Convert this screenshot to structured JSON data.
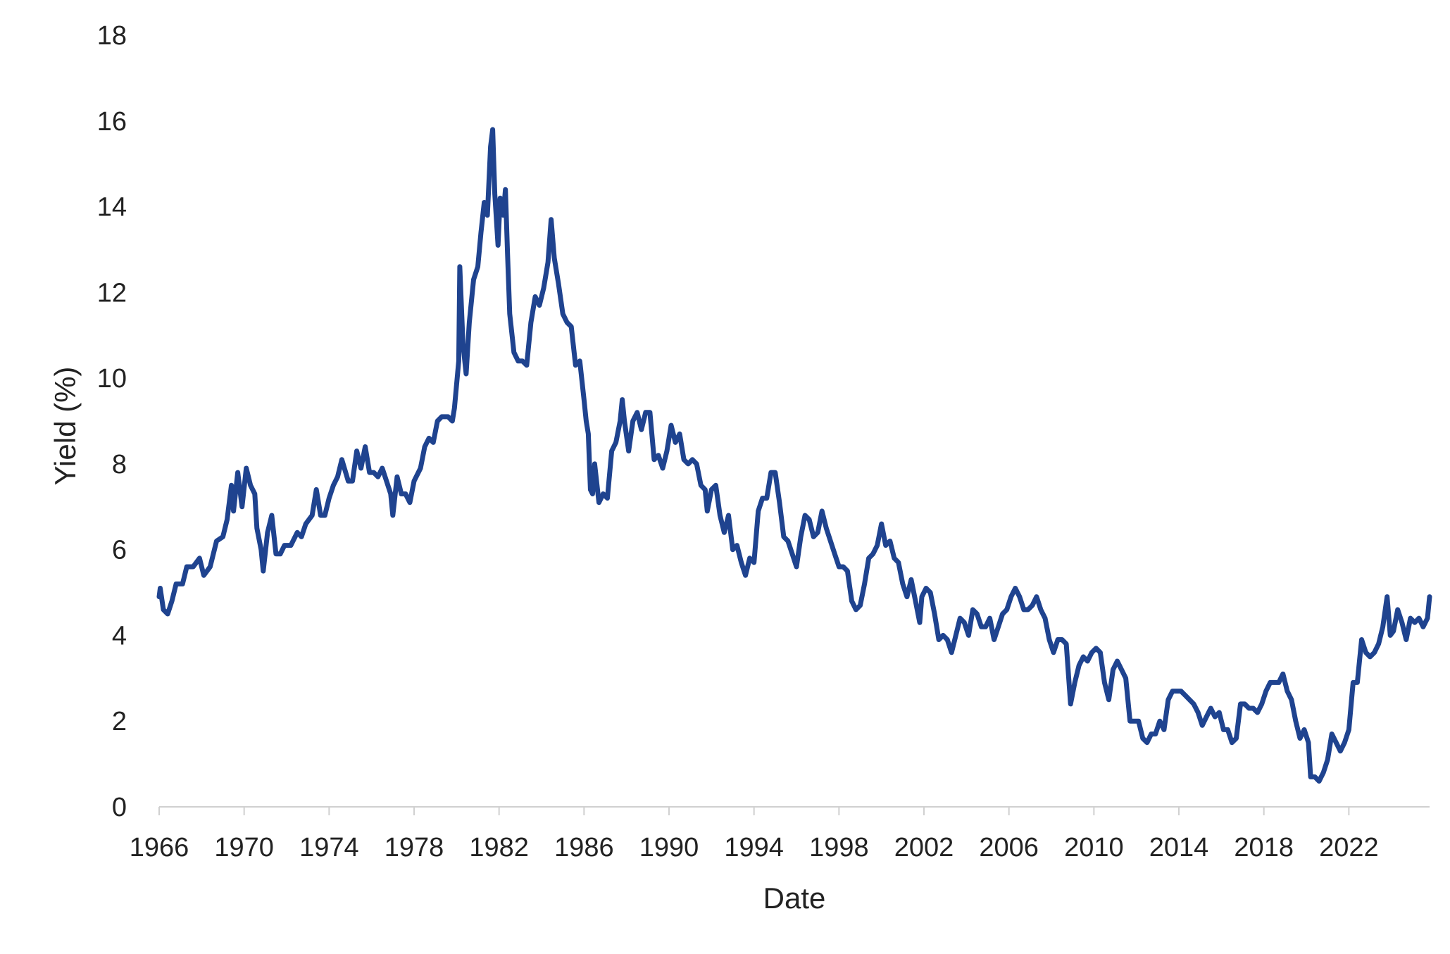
{
  "chart_data": {
    "type": "line",
    "title": "",
    "xlabel": "Date",
    "ylabel": "Yield (%)",
    "xlim": [
      1966,
      2025.8
    ],
    "ylim": [
      0,
      18
    ],
    "grid": false,
    "legend": "none",
    "x_ticks": [
      1966,
      1970,
      1974,
      1978,
      1982,
      1986,
      1990,
      1994,
      1998,
      2002,
      2006,
      2010,
      2014,
      2018,
      2022
    ],
    "y_ticks": [
      0,
      2,
      4,
      6,
      8,
      10,
      12,
      14,
      16,
      18
    ],
    "series": [
      {
        "color": "#1f438f",
        "points": [
          [
            1966.0,
            4.9
          ],
          [
            1966.05,
            5.1
          ],
          [
            1966.2,
            4.6
          ],
          [
            1966.4,
            4.5
          ],
          [
            1966.6,
            4.8
          ],
          [
            1966.8,
            5.2
          ],
          [
            1967.1,
            5.2
          ],
          [
            1967.3,
            5.6
          ],
          [
            1967.6,
            5.6
          ],
          [
            1967.9,
            5.8
          ],
          [
            1968.1,
            5.4
          ],
          [
            1968.4,
            5.6
          ],
          [
            1968.7,
            6.2
          ],
          [
            1969.0,
            6.3
          ],
          [
            1969.2,
            6.7
          ],
          [
            1969.4,
            7.5
          ],
          [
            1969.5,
            6.9
          ],
          [
            1969.7,
            7.8
          ],
          [
            1969.9,
            7.0
          ],
          [
            1970.1,
            7.9
          ],
          [
            1970.3,
            7.5
          ],
          [
            1970.5,
            7.3
          ],
          [
            1970.6,
            6.5
          ],
          [
            1970.8,
            6.0
          ],
          [
            1970.9,
            5.5
          ],
          [
            1971.1,
            6.4
          ],
          [
            1971.3,
            6.8
          ],
          [
            1971.5,
            5.9
          ],
          [
            1971.7,
            5.9
          ],
          [
            1971.9,
            6.1
          ],
          [
            1972.2,
            6.1
          ],
          [
            1972.5,
            6.4
          ],
          [
            1972.7,
            6.3
          ],
          [
            1972.9,
            6.6
          ],
          [
            1973.2,
            6.8
          ],
          [
            1973.4,
            7.4
          ],
          [
            1973.6,
            6.8
          ],
          [
            1973.8,
            6.8
          ],
          [
            1974.0,
            7.2
          ],
          [
            1974.2,
            7.5
          ],
          [
            1974.4,
            7.7
          ],
          [
            1974.6,
            8.1
          ],
          [
            1974.9,
            7.6
          ],
          [
            1975.1,
            7.6
          ],
          [
            1975.3,
            8.3
          ],
          [
            1975.5,
            7.9
          ],
          [
            1975.7,
            8.4
          ],
          [
            1975.9,
            7.8
          ],
          [
            1976.1,
            7.8
          ],
          [
            1976.3,
            7.7
          ],
          [
            1976.5,
            7.9
          ],
          [
            1976.7,
            7.6
          ],
          [
            1976.9,
            7.3
          ],
          [
            1977.0,
            6.8
          ],
          [
            1977.2,
            7.7
          ],
          [
            1977.4,
            7.3
          ],
          [
            1977.6,
            7.3
          ],
          [
            1977.8,
            7.1
          ],
          [
            1978.0,
            7.6
          ],
          [
            1978.3,
            7.9
          ],
          [
            1978.5,
            8.4
          ],
          [
            1978.7,
            8.6
          ],
          [
            1978.9,
            8.5
          ],
          [
            1979.1,
            9.0
          ],
          [
            1979.3,
            9.1
          ],
          [
            1979.6,
            9.1
          ],
          [
            1979.8,
            9.0
          ],
          [
            1979.9,
            9.3
          ],
          [
            1980.1,
            10.4
          ],
          [
            1980.15,
            12.6
          ],
          [
            1980.3,
            10.8
          ],
          [
            1980.45,
            10.1
          ],
          [
            1980.6,
            11.3
          ],
          [
            1980.8,
            12.3
          ],
          [
            1981.0,
            12.6
          ],
          [
            1981.15,
            13.4
          ],
          [
            1981.3,
            14.1
          ],
          [
            1981.45,
            13.8
          ],
          [
            1981.6,
            15.4
          ],
          [
            1981.7,
            15.8
          ],
          [
            1981.8,
            14.3
          ],
          [
            1981.95,
            13.1
          ],
          [
            1982.05,
            14.2
          ],
          [
            1982.2,
            13.8
          ],
          [
            1982.3,
            14.4
          ],
          [
            1982.4,
            12.9
          ],
          [
            1982.5,
            11.5
          ],
          [
            1982.7,
            10.6
          ],
          [
            1982.9,
            10.4
          ],
          [
            1983.1,
            10.4
          ],
          [
            1983.3,
            10.3
          ],
          [
            1983.5,
            11.3
          ],
          [
            1983.7,
            11.9
          ],
          [
            1983.9,
            11.7
          ],
          [
            1984.1,
            12.1
          ],
          [
            1984.3,
            12.7
          ],
          [
            1984.45,
            13.7
          ],
          [
            1984.6,
            12.8
          ],
          [
            1984.8,
            12.2
          ],
          [
            1985.0,
            11.5
          ],
          [
            1985.2,
            11.3
          ],
          [
            1985.4,
            11.2
          ],
          [
            1985.6,
            10.3
          ],
          [
            1985.8,
            10.4
          ],
          [
            1986.0,
            9.5
          ],
          [
            1986.1,
            9.0
          ],
          [
            1986.2,
            8.7
          ],
          [
            1986.3,
            7.4
          ],
          [
            1986.4,
            7.3
          ],
          [
            1986.5,
            8.0
          ],
          [
            1986.7,
            7.1
          ],
          [
            1986.9,
            7.3
          ],
          [
            1987.1,
            7.2
          ],
          [
            1987.3,
            8.3
          ],
          [
            1987.5,
            8.5
          ],
          [
            1987.7,
            9.0
          ],
          [
            1987.8,
            9.5
          ],
          [
            1987.9,
            9.0
          ],
          [
            1988.1,
            8.3
          ],
          [
            1988.3,
            9.0
          ],
          [
            1988.5,
            9.2
          ],
          [
            1988.7,
            8.8
          ],
          [
            1988.9,
            9.2
          ],
          [
            1989.1,
            9.2
          ],
          [
            1989.3,
            8.1
          ],
          [
            1989.5,
            8.2
          ],
          [
            1989.7,
            7.9
          ],
          [
            1989.9,
            8.3
          ],
          [
            1990.1,
            8.9
          ],
          [
            1990.3,
            8.5
          ],
          [
            1990.5,
            8.7
          ],
          [
            1990.7,
            8.1
          ],
          [
            1990.9,
            8.0
          ],
          [
            1991.1,
            8.1
          ],
          [
            1991.3,
            8.0
          ],
          [
            1991.5,
            7.5
          ],
          [
            1991.7,
            7.4
          ],
          [
            1991.8,
            6.9
          ],
          [
            1992.0,
            7.4
          ],
          [
            1992.2,
            7.5
          ],
          [
            1992.4,
            6.8
          ],
          [
            1992.6,
            6.4
          ],
          [
            1992.8,
            6.8
          ],
          [
            1993.0,
            6.0
          ],
          [
            1993.2,
            6.1
          ],
          [
            1993.4,
            5.7
          ],
          [
            1993.6,
            5.4
          ],
          [
            1993.8,
            5.8
          ],
          [
            1994.0,
            5.7
          ],
          [
            1994.2,
            6.9
          ],
          [
            1994.4,
            7.2
          ],
          [
            1994.6,
            7.2
          ],
          [
            1994.8,
            7.8
          ],
          [
            1995.0,
            7.8
          ],
          [
            1995.2,
            7.1
          ],
          [
            1995.4,
            6.3
          ],
          [
            1995.6,
            6.2
          ],
          [
            1995.8,
            5.9
          ],
          [
            1996.0,
            5.6
          ],
          [
            1996.2,
            6.3
          ],
          [
            1996.4,
            6.8
          ],
          [
            1996.6,
            6.7
          ],
          [
            1996.8,
            6.3
          ],
          [
            1997.0,
            6.4
          ],
          [
            1997.2,
            6.9
          ],
          [
            1997.4,
            6.5
          ],
          [
            1997.6,
            6.2
          ],
          [
            1997.8,
            5.9
          ],
          [
            1998.0,
            5.6
          ],
          [
            1998.2,
            5.6
          ],
          [
            1998.4,
            5.5
          ],
          [
            1998.6,
            4.8
          ],
          [
            1998.8,
            4.6
          ],
          [
            1999.0,
            4.7
          ],
          [
            1999.2,
            5.2
          ],
          [
            1999.4,
            5.8
          ],
          [
            1999.6,
            5.9
          ],
          [
            1999.8,
            6.1
          ],
          [
            2000.0,
            6.6
          ],
          [
            2000.2,
            6.1
          ],
          [
            2000.4,
            6.2
          ],
          [
            2000.6,
            5.8
          ],
          [
            2000.8,
            5.7
          ],
          [
            2001.0,
            5.2
          ],
          [
            2001.2,
            4.9
          ],
          [
            2001.4,
            5.3
          ],
          [
            2001.6,
            4.8
          ],
          [
            2001.8,
            4.3
          ],
          [
            2001.9,
            4.9
          ],
          [
            2002.1,
            5.1
          ],
          [
            2002.3,
            5.0
          ],
          [
            2002.5,
            4.5
          ],
          [
            2002.7,
            3.9
          ],
          [
            2002.9,
            4.0
          ],
          [
            2003.1,
            3.9
          ],
          [
            2003.3,
            3.6
          ],
          [
            2003.5,
            4.0
          ],
          [
            2003.7,
            4.4
          ],
          [
            2003.9,
            4.3
          ],
          [
            2004.1,
            4.0
          ],
          [
            2004.3,
            4.6
          ],
          [
            2004.5,
            4.5
          ],
          [
            2004.7,
            4.2
          ],
          [
            2004.9,
            4.2
          ],
          [
            2005.1,
            4.4
          ],
          [
            2005.3,
            3.9
          ],
          [
            2005.5,
            4.2
          ],
          [
            2005.7,
            4.5
          ],
          [
            2005.9,
            4.6
          ],
          [
            2006.1,
            4.9
          ],
          [
            2006.3,
            5.1
          ],
          [
            2006.5,
            4.9
          ],
          [
            2006.7,
            4.6
          ],
          [
            2006.9,
            4.6
          ],
          [
            2007.1,
            4.7
          ],
          [
            2007.3,
            4.9
          ],
          [
            2007.5,
            4.6
          ],
          [
            2007.7,
            4.4
          ],
          [
            2007.9,
            3.9
          ],
          [
            2008.1,
            3.6
          ],
          [
            2008.3,
            3.9
          ],
          [
            2008.5,
            3.9
          ],
          [
            2008.7,
            3.8
          ],
          [
            2008.9,
            2.4
          ],
          [
            2009.1,
            2.9
          ],
          [
            2009.3,
            3.3
          ],
          [
            2009.5,
            3.5
          ],
          [
            2009.7,
            3.4
          ],
          [
            2009.9,
            3.6
          ],
          [
            2010.1,
            3.7
          ],
          [
            2010.3,
            3.6
          ],
          [
            2010.5,
            2.9
          ],
          [
            2010.7,
            2.5
          ],
          [
            2010.9,
            3.2
          ],
          [
            2011.1,
            3.4
          ],
          [
            2011.3,
            3.2
          ],
          [
            2011.5,
            3.0
          ],
          [
            2011.7,
            2.0
          ],
          [
            2011.9,
            2.0
          ],
          [
            2012.1,
            2.0
          ],
          [
            2012.3,
            1.6
          ],
          [
            2012.5,
            1.5
          ],
          [
            2012.7,
            1.7
          ],
          [
            2012.9,
            1.7
          ],
          [
            2013.1,
            2.0
          ],
          [
            2013.3,
            1.8
          ],
          [
            2013.5,
            2.5
          ],
          [
            2013.7,
            2.7
          ],
          [
            2013.9,
            2.7
          ],
          [
            2014.1,
            2.7
          ],
          [
            2014.3,
            2.6
          ],
          [
            2014.5,
            2.5
          ],
          [
            2014.7,
            2.4
          ],
          [
            2014.9,
            2.2
          ],
          [
            2015.1,
            1.9
          ],
          [
            2015.3,
            2.1
          ],
          [
            2015.5,
            2.3
          ],
          [
            2015.7,
            2.1
          ],
          [
            2015.9,
            2.2
          ],
          [
            2016.1,
            1.8
          ],
          [
            2016.3,
            1.8
          ],
          [
            2016.5,
            1.5
          ],
          [
            2016.7,
            1.6
          ],
          [
            2016.9,
            2.4
          ],
          [
            2017.1,
            2.4
          ],
          [
            2017.3,
            2.3
          ],
          [
            2017.5,
            2.3
          ],
          [
            2017.7,
            2.2
          ],
          [
            2017.9,
            2.4
          ],
          [
            2018.1,
            2.7
          ],
          [
            2018.3,
            2.9
          ],
          [
            2018.5,
            2.9
          ],
          [
            2018.7,
            2.9
          ],
          [
            2018.9,
            3.1
          ],
          [
            2019.1,
            2.7
          ],
          [
            2019.3,
            2.5
          ],
          [
            2019.5,
            2.0
          ],
          [
            2019.7,
            1.6
          ],
          [
            2019.9,
            1.8
          ],
          [
            2020.1,
            1.5
          ],
          [
            2020.2,
            0.7
          ],
          [
            2020.4,
            0.7
          ],
          [
            2020.6,
            0.6
          ],
          [
            2020.8,
            0.8
          ],
          [
            2021.0,
            1.1
          ],
          [
            2021.2,
            1.7
          ],
          [
            2021.4,
            1.5
          ],
          [
            2021.6,
            1.3
          ],
          [
            2021.8,
            1.5
          ],
          [
            2022.0,
            1.8
          ],
          [
            2022.2,
            2.9
          ],
          [
            2022.4,
            2.9
          ],
          [
            2022.6,
            3.9
          ],
          [
            2022.8,
            3.6
          ],
          [
            2023.0,
            3.5
          ],
          [
            2023.2,
            3.6
          ],
          [
            2023.4,
            3.8
          ],
          [
            2023.6,
            4.2
          ],
          [
            2023.8,
            4.9
          ],
          [
            2023.95,
            4.0
          ],
          [
            2024.1,
            4.1
          ],
          [
            2024.3,
            4.6
          ],
          [
            2024.5,
            4.3
          ],
          [
            2024.7,
            3.9
          ],
          [
            2024.9,
            4.4
          ],
          [
            2025.1,
            4.3
          ],
          [
            2025.3,
            4.4
          ],
          [
            2025.5,
            4.2
          ],
          [
            2025.7,
            4.4
          ],
          [
            2025.8,
            4.9
          ]
        ]
      }
    ]
  }
}
